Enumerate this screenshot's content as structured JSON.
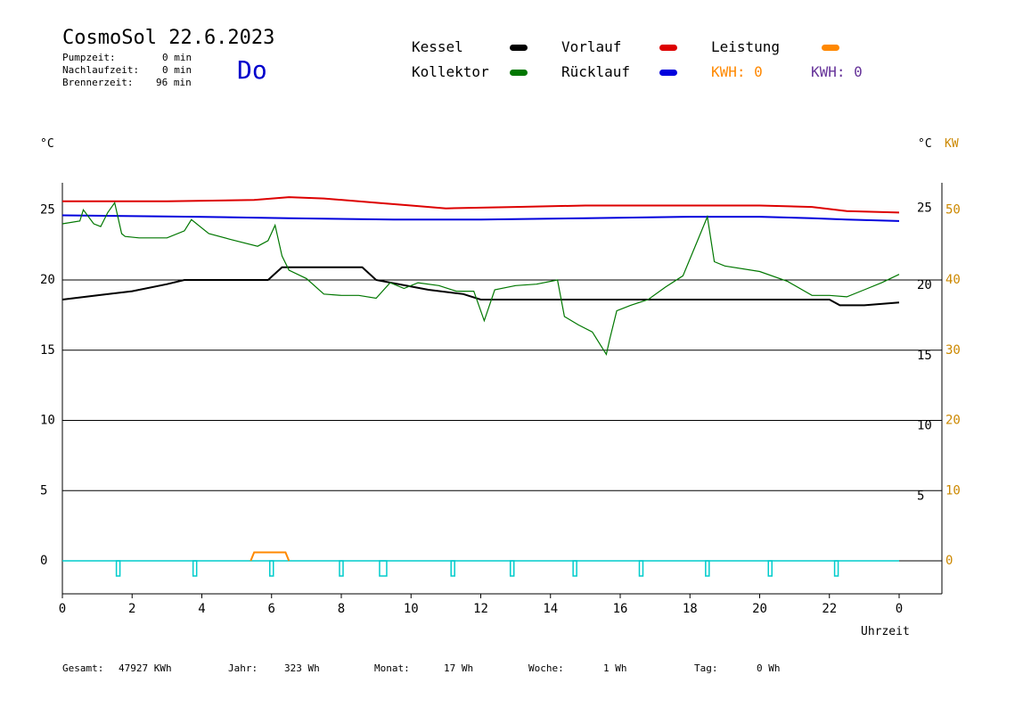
{
  "header": {
    "title": "CosmoSol 22.6.2023",
    "day": "Do",
    "pump_label": "Pumpzeit:",
    "pump_value": "0 min",
    "nach_label": "Nachlaufzeit:",
    "nach_value": "0 min",
    "brenner_label": "Brennerzeit:",
    "brenner_value": "96 min"
  },
  "legend": {
    "kessel": "Kessel",
    "kollektor": "Kollektor",
    "vorlauf": "Vorlauf",
    "ruecklauf": "Rücklauf",
    "leistung": "Leistung",
    "kwh1": "KWH: 0",
    "kwh2": "KWH: 0"
  },
  "colors": {
    "kessel": "#000000",
    "kollektor": "#007700",
    "vorlauf": "#dd0000",
    "ruecklauf": "#0000dd",
    "leistung": "#ff8800",
    "kwh2": "#663399",
    "pump": "#00cccc"
  },
  "axes": {
    "left_unit": "°C",
    "right_unit_c": "°C",
    "right_unit_kw": "KW",
    "xlabel": "Uhrzeit"
  },
  "footer": {
    "gesamt_label": "Gesamt:",
    "gesamt_value": "47927 KWh",
    "jahr_label": "Jahr:",
    "jahr_value": "323 Wh",
    "monat_label": "Monat:",
    "monat_value": "17 Wh",
    "woche_label": "Woche:",
    "woche_value": "1 Wh",
    "tag_label": "Tag:",
    "tag_value": "0 Wh"
  },
  "chart_data": {
    "type": "line",
    "xlabel": "Uhrzeit",
    "xlim": [
      0,
      24
    ],
    "ylim": [
      -3,
      27
    ],
    "x_ticks": [
      "0",
      "2",
      "4",
      "6",
      "8",
      "10",
      "12",
      "14",
      "16",
      "18",
      "20",
      "22",
      "0"
    ],
    "y_ticks_left": [
      "0",
      "5",
      "10",
      "15",
      "20",
      "25"
    ],
    "y_ticks_right_c": [
      "5",
      "10",
      "15",
      "20",
      "25"
    ],
    "y_ticks_right_kw": [
      "0",
      "10",
      "20",
      "30",
      "40",
      "50"
    ],
    "series": [
      {
        "name": "Vorlauf",
        "color": "#dd0000",
        "x": [
          0,
          3,
          5.5,
          6.5,
          7.5,
          9,
          10,
          11,
          13,
          15,
          18,
          20,
          21.5,
          22.5,
          24
        ],
        "y": [
          25.6,
          25.6,
          25.7,
          25.9,
          25.8,
          25.5,
          25.3,
          25.1,
          25.2,
          25.3,
          25.3,
          25.3,
          25.2,
          24.9,
          24.8
        ]
      },
      {
        "name": "Rücklauf",
        "color": "#0000dd",
        "x": [
          0,
          3.8,
          6.5,
          9.5,
          12,
          15,
          18,
          20,
          21.5,
          22.5,
          24
        ],
        "y": [
          24.6,
          24.5,
          24.4,
          24.3,
          24.3,
          24.4,
          24.5,
          24.5,
          24.4,
          24.3,
          24.2
        ]
      },
      {
        "name": "Kessel",
        "color": "#000000",
        "x": [
          0,
          1,
          2,
          3,
          3.5,
          5.9,
          6.3,
          8.6,
          9.0,
          10.5,
          11.5,
          12,
          14,
          16,
          18,
          20,
          21,
          22,
          22.3,
          23,
          24
        ],
        "y": [
          18.6,
          18.9,
          19.2,
          19.7,
          20.0,
          20.0,
          20.9,
          20.9,
          20.0,
          19.3,
          19.0,
          18.6,
          18.6,
          18.6,
          18.6,
          18.6,
          18.6,
          18.6,
          18.2,
          18.2,
          18.4
        ]
      },
      {
        "name": "Kollektor",
        "color": "#007700",
        "x": [
          0,
          0.5,
          0.6,
          0.9,
          1.1,
          1.3,
          1.5,
          1.7,
          1.8,
          2.2,
          3,
          3.5,
          3.7,
          4.2,
          4.8,
          5.6,
          5.9,
          6.1,
          6.3,
          6.5,
          7.0,
          7.5,
          8,
          8.5,
          9.0,
          9.4,
          9.8,
          10.2,
          10.8,
          11.3,
          11.8,
          12.1,
          12.4,
          13,
          13.6,
          14.2,
          14.4,
          14.8,
          15.2,
          15.6,
          15.7,
          15.9,
          16.3,
          16.8,
          17.3,
          17.8,
          18.2,
          18.5,
          18.7,
          19,
          20,
          20.8,
          21.5,
          22,
          22.5,
          23,
          23.5,
          24
        ],
        "y": [
          24.0,
          24.2,
          25.0,
          24.0,
          23.8,
          24.8,
          25.5,
          23.3,
          23.1,
          23.0,
          23.0,
          23.5,
          24.3,
          23.3,
          22.9,
          22.4,
          22.8,
          23.9,
          21.7,
          20.7,
          20.1,
          19.0,
          18.9,
          18.9,
          18.7,
          19.8,
          19.4,
          19.8,
          19.6,
          19.2,
          19.2,
          17.1,
          19.3,
          19.6,
          19.7,
          20.0,
          17.4,
          16.8,
          16.3,
          14.7,
          15.8,
          17.8,
          18.2,
          18.6,
          19.5,
          20.3,
          22.7,
          24.5,
          21.3,
          21.0,
          20.6,
          19.9,
          18.9,
          18.9,
          18.8,
          19.3,
          19.8,
          20.4
        ]
      },
      {
        "name": "Leistung",
        "color": "#ff8800",
        "x": [
          5.4,
          5.5,
          6.4,
          6.5
        ],
        "y": [
          0,
          0.6,
          0.6,
          0
        ]
      }
    ],
    "pump_pulse_hours": [
      1.6,
      3.8,
      6.0,
      8.0,
      9.2,
      11.2,
      12.9,
      14.7,
      16.6,
      18.5,
      20.3,
      22.2
    ]
  }
}
